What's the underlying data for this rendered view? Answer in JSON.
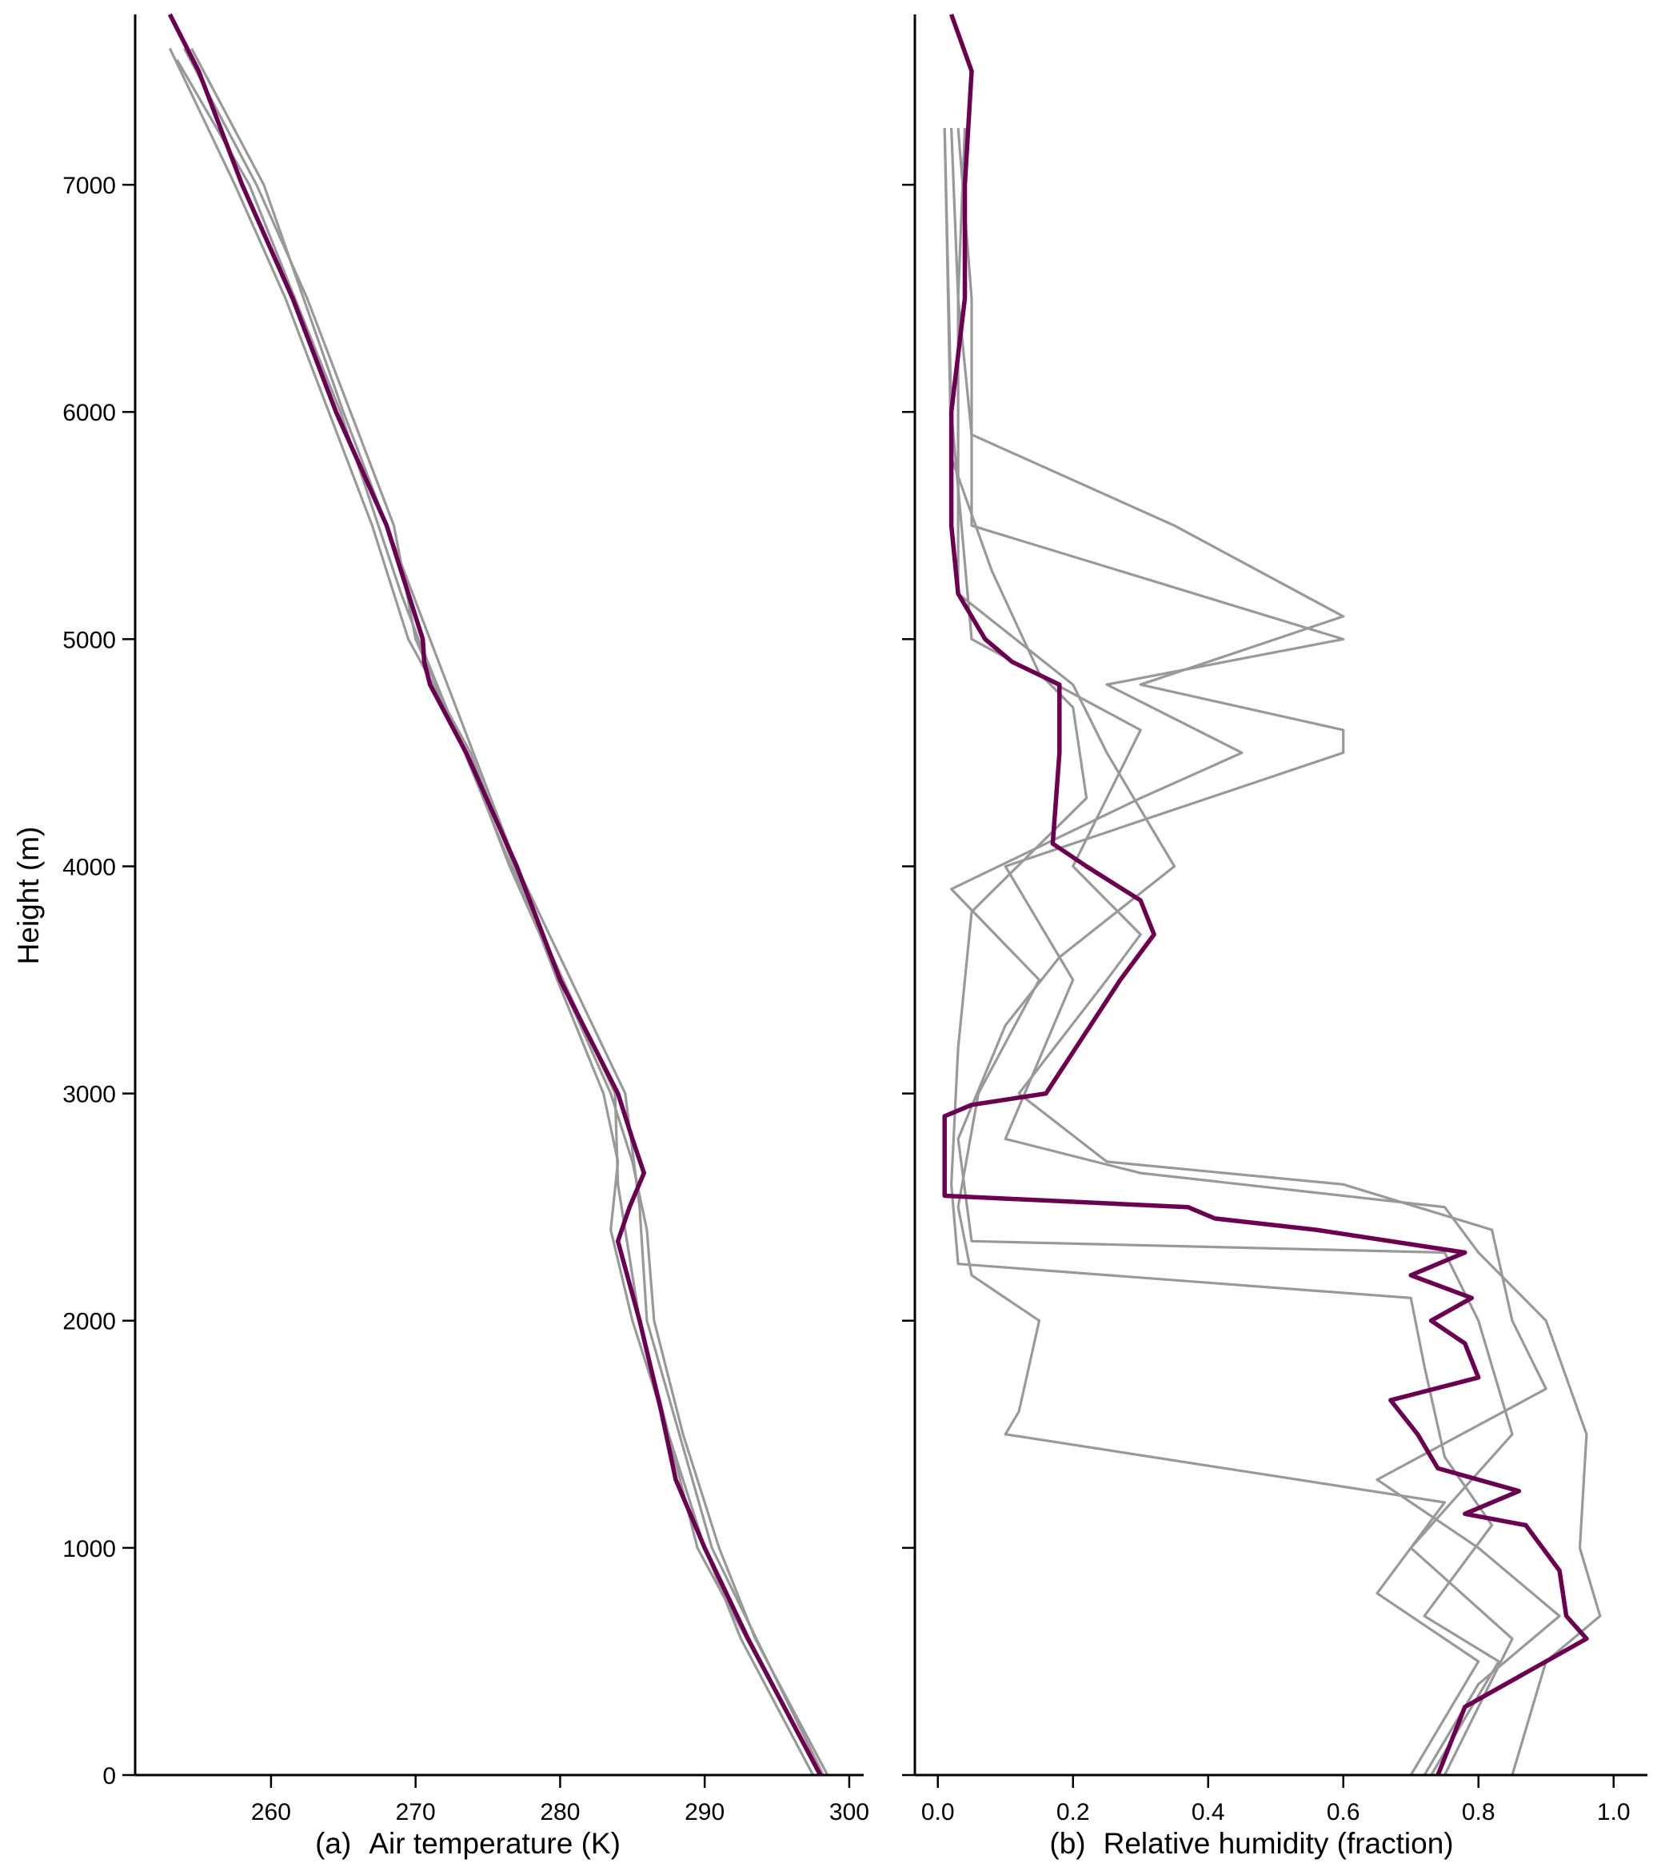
{
  "chart_data": [
    {
      "type": "line",
      "panel_label": "(a)",
      "xlabel": "Air temperature (K)",
      "ylabel": "Height (m)",
      "xlim": [
        250.6,
        301
      ],
      "ylim": [
        0,
        7750
      ],
      "xticks": [
        260,
        270,
        280,
        290,
        300
      ],
      "yticks": [
        0,
        1000,
        2000,
        3000,
        4000,
        5000,
        6000,
        7000
      ],
      "grid": false,
      "colors": {
        "mean": "#6b0050",
        "individual": "#999999"
      },
      "mean": [
        [
          0,
          298
        ],
        [
          300,
          295.5
        ],
        [
          600,
          293
        ],
        [
          1000,
          290
        ],
        [
          1300,
          288
        ],
        [
          1600,
          287
        ],
        [
          2000,
          285.5
        ],
        [
          2350,
          284
        ],
        [
          2500,
          284.8
        ],
        [
          2650,
          285.8
        ],
        [
          2800,
          285
        ],
        [
          3000,
          284
        ],
        [
          3500,
          280
        ],
        [
          4000,
          277
        ],
        [
          4500,
          273.5
        ],
        [
          4800,
          271
        ],
        [
          4900,
          270.6
        ],
        [
          5000,
          270.5
        ],
        [
          5200,
          269.5
        ],
        [
          5500,
          268
        ],
        [
          6000,
          264.5
        ],
        [
          6500,
          261.5
        ],
        [
          7000,
          258
        ],
        [
          7500,
          255
        ],
        [
          7750,
          253
        ]
      ],
      "individual": [
        [
          [
            0,
            298.5
          ],
          [
            600,
            293.5
          ],
          [
            1000,
            291
          ],
          [
            1500,
            288.5
          ],
          [
            2000,
            286.5
          ],
          [
            2400,
            286
          ],
          [
            2700,
            285
          ],
          [
            3000,
            283.5
          ],
          [
            3500,
            280
          ],
          [
            4000,
            276.5
          ],
          [
            4500,
            273.5
          ],
          [
            5000,
            270
          ],
          [
            5500,
            268.5
          ],
          [
            6000,
            265.5
          ],
          [
            6500,
            262.5
          ],
          [
            7000,
            259
          ],
          [
            7600,
            254
          ]
        ],
        [
          [
            0,
            297.5
          ],
          [
            600,
            292.5
          ],
          [
            1000,
            290
          ],
          [
            1500,
            287.5
          ],
          [
            2000,
            285
          ],
          [
            2400,
            283.5
          ],
          [
            2700,
            284
          ],
          [
            3000,
            283
          ],
          [
            3500,
            279.8
          ],
          [
            4000,
            276.8
          ],
          [
            4500,
            273.8
          ],
          [
            5000,
            269.5
          ],
          [
            5500,
            267
          ],
          [
            6000,
            264
          ],
          [
            6500,
            261
          ],
          [
            7000,
            257.5
          ],
          [
            7600,
            253
          ]
        ],
        [
          [
            0,
            298.2
          ],
          [
            1000,
            290.5
          ],
          [
            2000,
            286
          ],
          [
            2500,
            285.5
          ],
          [
            3000,
            284.5
          ],
          [
            4000,
            277
          ],
          [
            5000,
            271
          ],
          [
            6000,
            265
          ],
          [
            7000,
            259.5
          ],
          [
            7600,
            254.5
          ]
        ],
        [
          [
            0,
            298
          ],
          [
            1000,
            289.5
          ],
          [
            2000,
            285.5
          ],
          [
            2600,
            284
          ],
          [
            3000,
            283.8
          ],
          [
            4000,
            276.6
          ],
          [
            5000,
            270.2
          ],
          [
            5200,
            269
          ],
          [
            6000,
            264.8
          ],
          [
            7000,
            258.5
          ],
          [
            7550,
            253.5
          ]
        ]
      ]
    },
    {
      "type": "line",
      "panel_label": "(b)",
      "xlabel": "Relative humidity (fraction)",
      "ylabel": "",
      "xlim": [
        -0.034,
        1.05
      ],
      "ylim": [
        0,
        7750
      ],
      "xticks": [
        0.0,
        0.2,
        0.4,
        0.6,
        0.8,
        1.0
      ],
      "yticks": [
        0,
        1000,
        2000,
        3000,
        4000,
        5000,
        6000,
        7000
      ],
      "grid": false,
      "colors": {
        "mean": "#6b0050",
        "individual": "#999999"
      },
      "mean": [
        [
          0,
          0.74
        ],
        [
          300,
          0.78
        ],
        [
          600,
          0.96
        ],
        [
          700,
          0.93
        ],
        [
          900,
          0.92
        ],
        [
          1100,
          0.87
        ],
        [
          1150,
          0.78
        ],
        [
          1250,
          0.86
        ],
        [
          1350,
          0.74
        ],
        [
          1500,
          0.71
        ],
        [
          1650,
          0.67
        ],
        [
          1750,
          0.8
        ],
        [
          1900,
          0.78
        ],
        [
          2000,
          0.73
        ],
        [
          2100,
          0.79
        ],
        [
          2200,
          0.7
        ],
        [
          2300,
          0.78
        ],
        [
          2400,
          0.56
        ],
        [
          2450,
          0.41
        ],
        [
          2500,
          0.37
        ],
        [
          2550,
          0.01
        ],
        [
          2900,
          0.01
        ],
        [
          2950,
          0.05
        ],
        [
          3000,
          0.16
        ],
        [
          3500,
          0.27
        ],
        [
          3700,
          0.32
        ],
        [
          3850,
          0.3
        ],
        [
          4000,
          0.22
        ],
        [
          4100,
          0.17
        ],
        [
          4500,
          0.18
        ],
        [
          4800,
          0.18
        ],
        [
          4900,
          0.11
        ],
        [
          5000,
          0.07
        ],
        [
          5200,
          0.03
        ],
        [
          5500,
          0.02
        ],
        [
          6000,
          0.02
        ],
        [
          6500,
          0.04
        ],
        [
          7000,
          0.04
        ],
        [
          7500,
          0.05
        ],
        [
          7750,
          0.02
        ]
      ],
      "individual": [
        [
          [
            0,
            0.85
          ],
          [
            500,
            0.9
          ],
          [
            700,
            0.98
          ],
          [
            1000,
            0.95
          ],
          [
            1500,
            0.96
          ],
          [
            2000,
            0.9
          ],
          [
            2300,
            0.8
          ],
          [
            2500,
            0.75
          ],
          [
            2650,
            0.3
          ],
          [
            2800,
            0.1
          ],
          [
            3500,
            0.2
          ],
          [
            4000,
            0.1
          ],
          [
            4500,
            0.6
          ],
          [
            4600,
            0.6
          ],
          [
            4800,
            0.3
          ],
          [
            5000,
            0.5
          ],
          [
            5100,
            0.6
          ],
          [
            5500,
            0.35
          ],
          [
            5900,
            0.05
          ],
          [
            6500,
            0.03
          ],
          [
            7250,
            0.02
          ]
        ],
        [
          [
            0,
            0.7
          ],
          [
            500,
            0.8
          ],
          [
            800,
            0.65
          ],
          [
            1200,
            0.75
          ],
          [
            1500,
            0.1
          ],
          [
            1600,
            0.12
          ],
          [
            2000,
            0.15
          ],
          [
            2200,
            0.05
          ],
          [
            2500,
            0.03
          ],
          [
            3000,
            0.06
          ],
          [
            3500,
            0.15
          ],
          [
            3900,
            0.02
          ],
          [
            4300,
            0.3
          ],
          [
            4500,
            0.45
          ],
          [
            4800,
            0.25
          ],
          [
            5000,
            0.6
          ],
          [
            5500,
            0.05
          ],
          [
            6500,
            0.05
          ],
          [
            7250,
            0.03
          ]
        ],
        [
          [
            0,
            0.72
          ],
          [
            400,
            0.8
          ],
          [
            700,
            0.92
          ],
          [
            1000,
            0.8
          ],
          [
            1300,
            0.65
          ],
          [
            1700,
            0.9
          ],
          [
            2000,
            0.85
          ],
          [
            2400,
            0.82
          ],
          [
            2600,
            0.6
          ],
          [
            2700,
            0.25
          ],
          [
            3000,
            0.12
          ],
          [
            3500,
            0.25
          ],
          [
            3700,
            0.3
          ],
          [
            4000,
            0.2
          ],
          [
            4600,
            0.3
          ],
          [
            5000,
            0.05
          ],
          [
            6000,
            0.02
          ],
          [
            7250,
            0.01
          ]
        ],
        [
          [
            0,
            0.75
          ],
          [
            600,
            0.85
          ],
          [
            1000,
            0.7
          ],
          [
            1500,
            0.85
          ],
          [
            2000,
            0.8
          ],
          [
            2300,
            0.75
          ],
          [
            2350,
            0.05
          ],
          [
            2800,
            0.03
          ],
          [
            3300,
            0.1
          ],
          [
            3600,
            0.18
          ],
          [
            4000,
            0.35
          ],
          [
            4500,
            0.25
          ],
          [
            4800,
            0.2
          ],
          [
            5200,
            0.03
          ],
          [
            6500,
            0.03
          ],
          [
            7250,
            0.04
          ]
        ],
        [
          [
            0,
            0.73
          ],
          [
            500,
            0.83
          ],
          [
            700,
            0.72
          ],
          [
            1100,
            0.82
          ],
          [
            1400,
            0.75
          ],
          [
            1800,
            0.72
          ],
          [
            2100,
            0.7
          ],
          [
            2250,
            0.03
          ],
          [
            2600,
            0.02
          ],
          [
            3200,
            0.03
          ],
          [
            3800,
            0.05
          ],
          [
            4300,
            0.22
          ],
          [
            4700,
            0.2
          ],
          [
            4850,
            0.15
          ],
          [
            5300,
            0.08
          ],
          [
            5800,
            0.02
          ],
          [
            7250,
            0.01
          ]
        ]
      ]
    }
  ]
}
